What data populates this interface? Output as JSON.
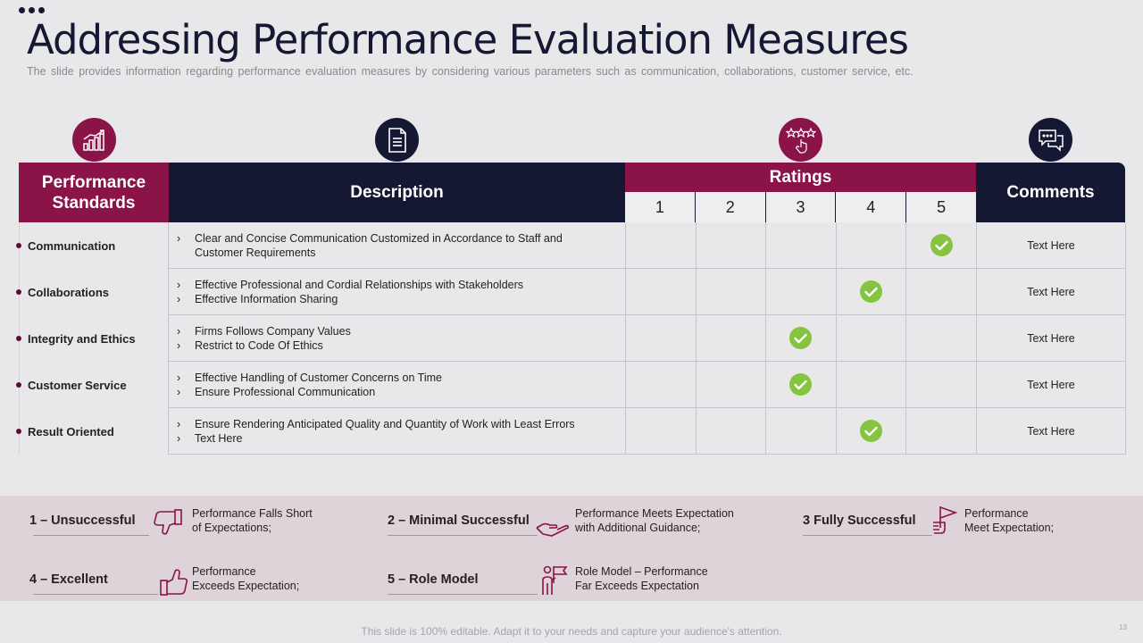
{
  "slide": {
    "title": "Addressing Performance Evaluation Measures",
    "subtitle": "The slide provides information regarding performance evaluation measures by considering various parameters such as communication, collaborations, customer service, etc.",
    "footer": "This slide is 100% editable. Adapt it to your needs and capture your audience's attention.",
    "page_number": "13"
  },
  "headers": {
    "standards": "Performance Standards",
    "description": "Description",
    "ratings": "Ratings",
    "comments": "Comments",
    "rating_levels": [
      "1",
      "2",
      "3",
      "4",
      "5"
    ]
  },
  "icons": {
    "standards": "growth-chart-icon",
    "description": "document-icon",
    "ratings": "star-rating-icon",
    "comments": "chat-bubbles-icon"
  },
  "rows": [
    {
      "standard": "Communication",
      "bullets": [
        "Clear and Concise Communication Customized in Accordance to Staff and",
        "Customer Requirements"
      ],
      "bulleted": [
        true,
        false
      ],
      "rating": 5,
      "comment": "Text Here"
    },
    {
      "standard": "Collaborations",
      "bullets": [
        "Effective Professional and Cordial Relationships with Stakeholders",
        "Effective Information  Sharing"
      ],
      "bulleted": [
        true,
        true
      ],
      "rating": 4,
      "comment": "Text Here"
    },
    {
      "standard": "Integrity and Ethics",
      "bullets": [
        "Firms Follows Company Values",
        "Restrict to Code  Of Ethics"
      ],
      "bulleted": [
        true,
        true
      ],
      "rating": 3,
      "comment": "Text Here"
    },
    {
      "standard": "Customer  Service",
      "bullets": [
        "Effective Handling of Customer Concerns  on Time",
        "Ensure Professional Communication"
      ],
      "bulleted": [
        true,
        true
      ],
      "rating": 3,
      "comment": "Text Here"
    },
    {
      "standard": "Result Oriented",
      "bullets": [
        "Ensure Rendering Anticipated Quality and Quantity of Work with Least Errors",
        "Text Here"
      ],
      "bulleted": [
        true,
        true
      ],
      "rating": 4,
      "comment": "Text Here"
    }
  ],
  "legend": [
    {
      "name": "1 – Unsuccessful",
      "icon": "thumbs-down-icon",
      "line1": "Performance  Falls Short",
      "line2": "of Expectations;"
    },
    {
      "name": "2 – Minimal Successful",
      "icon": "helping-hand-icon",
      "line1": "Performance  Meets Expectation",
      "line2": "with Additional Guidance;"
    },
    {
      "name": "3 Fully Successful",
      "icon": "flag-hand-icon",
      "line1": "Performance",
      "line2": "Meet Expectation;"
    },
    {
      "name": "4 – Excellent",
      "icon": "thumbs-up-icon",
      "line1": "Performance",
      "line2": "Exceeds Expectation;"
    },
    {
      "name": "5 – Role Model",
      "icon": "leader-flag-icon",
      "line1": "Role Model – Performance",
      "line2": "Far Exceeds Expectation"
    }
  ],
  "colors": {
    "magenta": "#8a1347",
    "navy": "#151833",
    "check_green": "#86c440",
    "legend_bg": "#dfd3da"
  }
}
